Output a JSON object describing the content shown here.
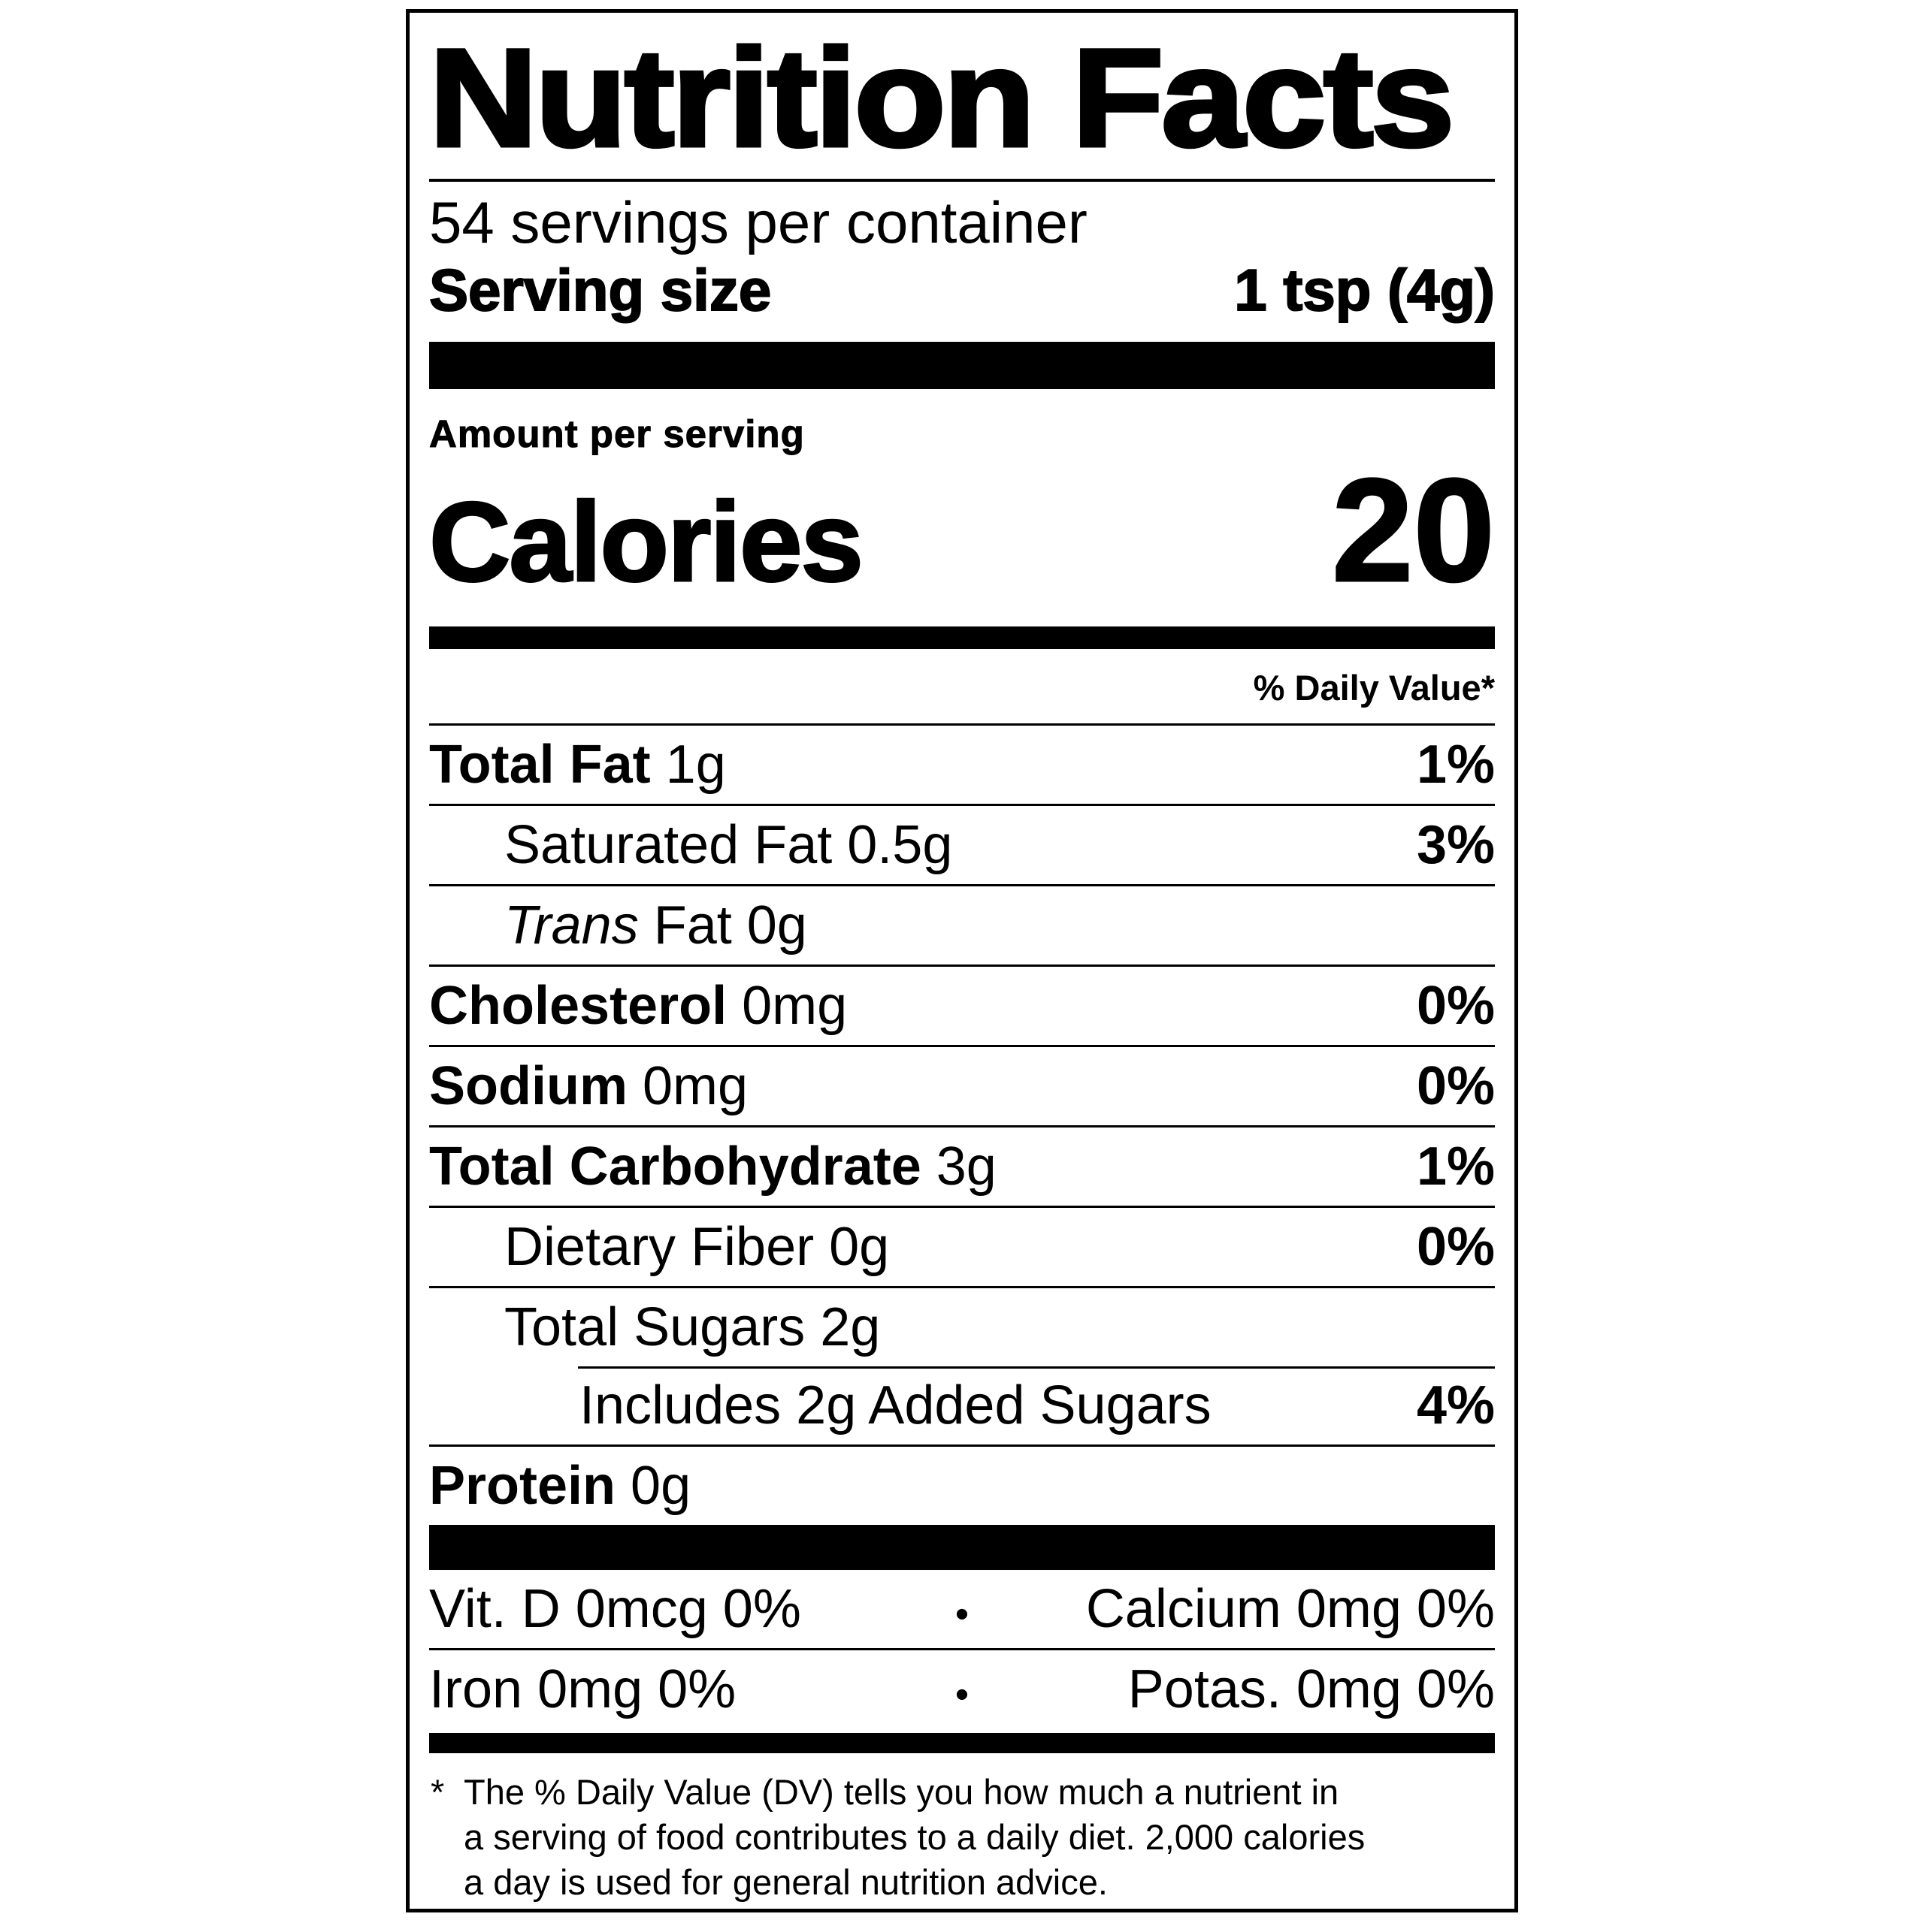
{
  "label": {
    "title": "Nutrition Facts",
    "servings_per_container": "54 servings per container",
    "serving_size": {
      "label": "Serving size",
      "value": "1 tsp (4g)"
    },
    "amount_per_serving": "Amount per serving",
    "calories": {
      "label": "Calories",
      "value": "20"
    },
    "daily_value_header": "% Daily Value*",
    "nutrient_rows": [
      {
        "parts": [
          {
            "text": "Total Fat",
            "style": "bold"
          },
          {
            "text": " 1g",
            "style": "regular"
          }
        ],
        "dv": "1%",
        "indent": 0,
        "rule_above": "full"
      },
      {
        "parts": [
          {
            "text": "Saturated Fat 0.5g",
            "style": "regular"
          }
        ],
        "dv": "3%",
        "indent": 1,
        "rule_above": "full"
      },
      {
        "parts": [
          {
            "text": "Trans",
            "style": "italic"
          },
          {
            "text": " Fat 0g",
            "style": "regular"
          }
        ],
        "dv": "",
        "indent": 1,
        "rule_above": "full"
      },
      {
        "parts": [
          {
            "text": "Cholesterol",
            "style": "bold"
          },
          {
            "text": " 0mg",
            "style": "regular"
          }
        ],
        "dv": "0%",
        "indent": 0,
        "rule_above": "full"
      },
      {
        "parts": [
          {
            "text": "Sodium",
            "style": "bold"
          },
          {
            "text": " 0mg",
            "style": "regular"
          }
        ],
        "dv": "0%",
        "indent": 0,
        "rule_above": "full"
      },
      {
        "parts": [
          {
            "text": "Total Carbohydrate",
            "style": "bold"
          },
          {
            "text": " 3g",
            "style": "regular"
          }
        ],
        "dv": "1%",
        "indent": 0,
        "rule_above": "full"
      },
      {
        "parts": [
          {
            "text": "Dietary Fiber 0g",
            "style": "regular"
          }
        ],
        "dv": "0%",
        "indent": 1,
        "rule_above": "full"
      },
      {
        "parts": [
          {
            "text": "Total Sugars 2g",
            "style": "regular"
          }
        ],
        "dv": "",
        "indent": 1,
        "rule_above": "full"
      },
      {
        "parts": [
          {
            "text": "Includes 2g Added Sugars",
            "style": "regular"
          }
        ],
        "dv": "4%",
        "indent": 2,
        "rule_above": "partial"
      },
      {
        "parts": [
          {
            "text": "Protein",
            "style": "bold"
          },
          {
            "text": " 0g",
            "style": "regular"
          }
        ],
        "dv": "",
        "indent": 0,
        "rule_above": "full"
      }
    ],
    "micronutrient_rows": [
      {
        "left": "Vit. D 0mcg 0%",
        "separator": "•",
        "right": "Calcium 0mg 0%"
      },
      {
        "left": "Iron 0mg 0%",
        "separator": "•",
        "right": "Potas. 0mg 0%"
      }
    ],
    "footnote": {
      "marker": "*",
      "lines": [
        "The % Daily Value (DV) tells you how much a nutrient in",
        "a serving of food contributes to a daily diet. 2,000 calories",
        "a day is used for general nutrition advice."
      ]
    }
  },
  "colors": {
    "ink": "#000000",
    "background": "#ffffff"
  }
}
